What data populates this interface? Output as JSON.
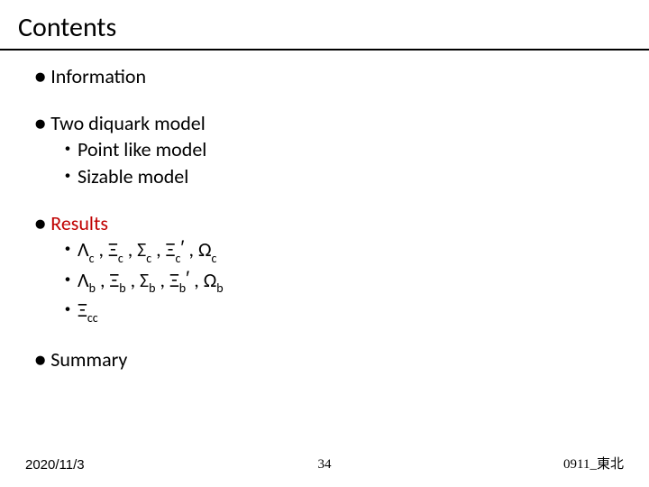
{
  "title": "Contents",
  "title_fontsize": 30,
  "title_color": "#000000",
  "underline_color": "#000000",
  "body_fontsize": 22,
  "body_color": "#000000",
  "accent_color": "#c00000",
  "background_color": "#ffffff",
  "bullets": {
    "b1": "● Information",
    "b2": "●  Two diquark model",
    "b2s1_prefix": "・",
    "b2s1": "Point like model",
    "b2s2_prefix": "・",
    "b2s2": "Sizable model",
    "b3": "● ",
    "b3_label": "Results",
    "b3s1_prefix": "・",
    "b3s1_L": "Λ",
    "b3s1_sub1": "c",
    "b3s1_sep1": " , ",
    "b3s1_Xi": "Ξ",
    "b3s1_sub2": "c",
    "b3s1_sep2": " , ",
    "b3s1_Sg": "Σ",
    "b3s1_sub3": "c",
    "b3s1_sep3": " , ",
    "b3s1_Xip": "Ξ",
    "b3s1_sub4": "c",
    "b3s1_prime": "′",
    "b3s1_sep4": " , ",
    "b3s1_Om": "Ω",
    "b3s1_sub5": "c",
    "b3s2_prefix": "・",
    "b3s2_L": "Λ",
    "b3s2_sub1": "b",
    "b3s2_sep1": " , ",
    "b3s2_Xi": "Ξ",
    "b3s2_sub2": "b",
    "b3s2_sep2": " , ",
    "b3s2_Sg": "Σ",
    "b3s2_sub3": "b",
    "b3s2_sep3": " , ",
    "b3s2_Xip": "Ξ",
    "b3s2_sub4": "b",
    "b3s2_prime": "′",
    "b3s2_sep4": " , ",
    "b3s2_Om": "Ω",
    "b3s2_sub5": "b",
    "b3s3_prefix": "・",
    "b3s3_Xi": "Ξ",
    "b3s3_sub": "cc",
    "b4": "● Summary"
  },
  "footer": {
    "date": "2020/11/3",
    "page": "34",
    "label": "0911_東北"
  }
}
